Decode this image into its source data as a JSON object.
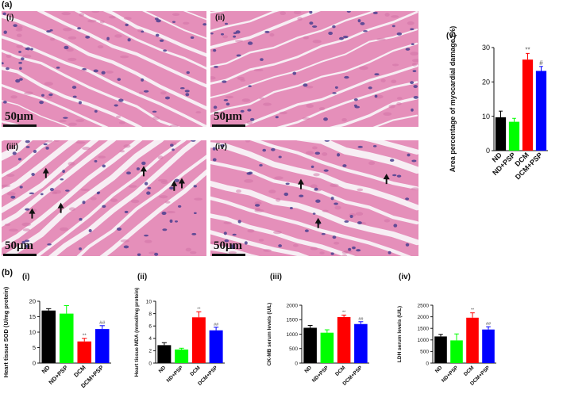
{
  "figure": {
    "label_a": "(a)",
    "label_b": "(b)",
    "scale_text": "50μm",
    "micrographs": [
      {
        "tag": "(i)",
        "arrows": 0
      },
      {
        "tag": "(ii)",
        "arrows": 0
      },
      {
        "tag": "(iii)",
        "arrows": 6
      },
      {
        "tag": "(iv)",
        "arrows": 3
      }
    ],
    "colors": {
      "tissue": "#e58fba",
      "tissue_dark": "#cf6fa3",
      "nucleus": "#4b3f8f",
      "gap": "#f7eef4"
    }
  },
  "chart_data": [
    {
      "id": "v",
      "tag": "(v)",
      "type": "bar",
      "categories": [
        "ND",
        "ND+PSP",
        "DCM",
        "DCM+PSP"
      ],
      "values": [
        9.7,
        8.4,
        26.5,
        23.2
      ],
      "errors": [
        1.8,
        1.0,
        1.8,
        1.3
      ],
      "annotations": [
        "",
        "",
        "**",
        "#"
      ],
      "colors": [
        "#000000",
        "#00ff00",
        "#ff0000",
        "#0000ff"
      ],
      "ylabel": "Area percentage of myocardial damage (%)",
      "ylim": [
        0,
        30
      ],
      "yticks": [
        0,
        10,
        20,
        30
      ]
    },
    {
      "id": "b1",
      "tag": "(i)",
      "type": "bar",
      "categories": [
        "ND",
        "ND+PSP",
        "DCM",
        "DCM+PSP"
      ],
      "values": [
        17.0,
        16.0,
        7.0,
        11.0
      ],
      "errors": [
        0.6,
        2.6,
        1.0,
        1.1
      ],
      "annotations": [
        "",
        "",
        "**",
        "##"
      ],
      "colors": [
        "#000000",
        "#00ff00",
        "#ff0000",
        "#0000ff"
      ],
      "ylabel": "Heart tissue SOD (U/mg protein)",
      "ylim": [
        0,
        20
      ],
      "yticks": [
        0,
        5,
        10,
        15,
        20
      ]
    },
    {
      "id": "b2",
      "tag": "(ii)",
      "type": "bar",
      "categories": [
        "ND",
        "ND+PSP",
        "DCM",
        "DCM+PSP"
      ],
      "values": [
        2.9,
        2.2,
        7.4,
        5.3
      ],
      "errors": [
        0.4,
        0.2,
        0.9,
        0.5
      ],
      "annotations": [
        "",
        "",
        "**",
        "##"
      ],
      "colors": [
        "#000000",
        "#00ff00",
        "#ff0000",
        "#0000ff"
      ],
      "ylabel": "Heart tissue MDA (mmol/mg protein)",
      "ylim": [
        0,
        10
      ],
      "yticks": [
        0,
        2,
        4,
        6,
        8,
        10
      ]
    },
    {
      "id": "b3",
      "tag": "(iii)",
      "type": "bar",
      "categories": [
        "ND",
        "ND+PSP",
        "DCM",
        "DCM+PSP"
      ],
      "values": [
        1220,
        1050,
        1590,
        1350
      ],
      "errors": [
        80,
        100,
        70,
        80
      ],
      "annotations": [
        "",
        "",
        "**",
        "##"
      ],
      "colors": [
        "#000000",
        "#00ff00",
        "#ff0000",
        "#0000ff"
      ],
      "ylabel": "CK-MB serum levels (U/L)",
      "ylim": [
        0,
        2000
      ],
      "yticks": [
        0,
        500,
        1000,
        1500,
        2000
      ]
    },
    {
      "id": "b4",
      "tag": "(iv)",
      "type": "bar",
      "categories": [
        "ND",
        "ND+PSP",
        "DCM",
        "DCM+PSP"
      ],
      "values": [
        1150,
        980,
        1960,
        1450
      ],
      "errors": [
        90,
        280,
        210,
        120
      ],
      "annotations": [
        "",
        "",
        "**",
        "##"
      ],
      "colors": [
        "#000000",
        "#00ff00",
        "#ff0000",
        "#0000ff"
      ],
      "ylabel": "LDH serum levels (U/L)",
      "ylim": [
        0,
        2500
      ],
      "yticks": [
        0,
        500,
        1000,
        1500,
        2000,
        2500
      ]
    }
  ]
}
